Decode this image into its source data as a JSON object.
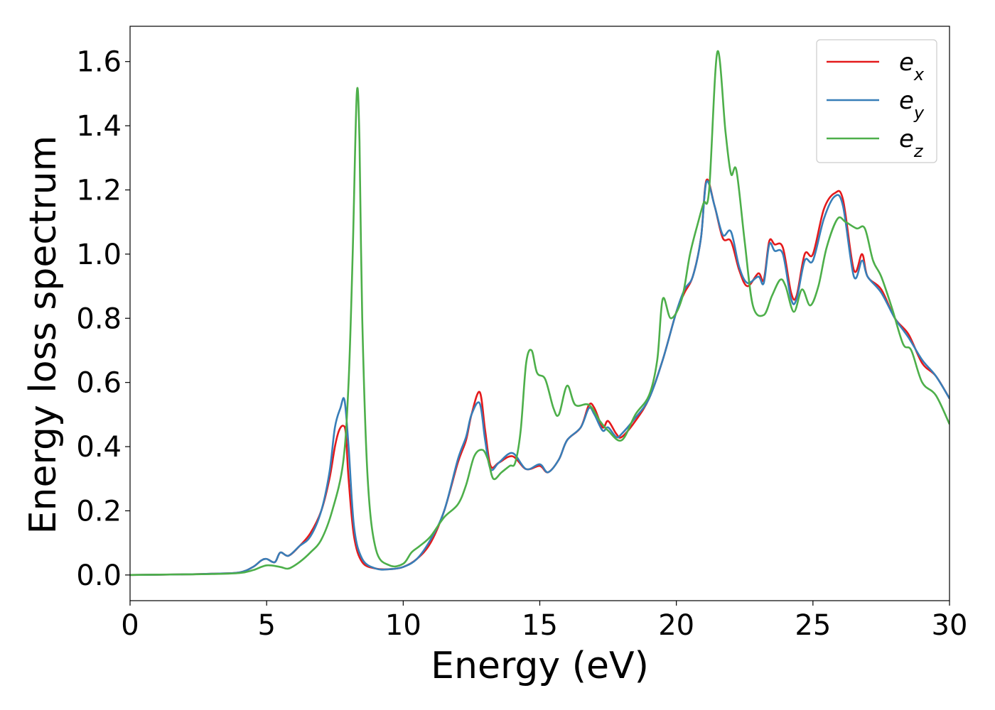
{
  "chart_data": {
    "type": "line",
    "xlabel": "Energy (eV)",
    "ylabel": "Energy loss spectrum",
    "xlim": [
      0,
      30
    ],
    "ylim": [
      -0.08,
      1.71
    ],
    "x_ticks": [
      0,
      5,
      10,
      15,
      20,
      25,
      30
    ],
    "y_ticks": [
      0.0,
      0.2,
      0.4,
      0.6,
      0.8,
      1.0,
      1.2,
      1.4,
      1.6
    ],
    "grid": false,
    "legend_position": "top-right",
    "series": [
      {
        "name": "e_x",
        "label_base": "e",
        "label_sub": "x",
        "color": "#e41a1c",
        "points": [
          [
            0,
            0
          ],
          [
            2,
            0.002
          ],
          [
            3,
            0.004
          ],
          [
            4,
            0.008
          ],
          [
            4.5,
            0.025
          ],
          [
            4.8,
            0.045
          ],
          [
            5.0,
            0.05
          ],
          [
            5.3,
            0.04
          ],
          [
            5.5,
            0.07
          ],
          [
            5.8,
            0.06
          ],
          [
            6.2,
            0.09
          ],
          [
            6.6,
            0.13
          ],
          [
            7.0,
            0.2
          ],
          [
            7.3,
            0.3
          ],
          [
            7.5,
            0.4
          ],
          [
            7.65,
            0.45
          ],
          [
            7.8,
            0.465
          ],
          [
            7.9,
            0.44
          ],
          [
            8.0,
            0.3
          ],
          [
            8.2,
            0.12
          ],
          [
            8.5,
            0.04
          ],
          [
            9.0,
            0.02
          ],
          [
            9.5,
            0.018
          ],
          [
            10.0,
            0.025
          ],
          [
            10.5,
            0.05
          ],
          [
            11.0,
            0.1
          ],
          [
            11.5,
            0.2
          ],
          [
            12.0,
            0.35
          ],
          [
            12.3,
            0.42
          ],
          [
            12.5,
            0.5
          ],
          [
            12.8,
            0.57
          ],
          [
            13.0,
            0.45
          ],
          [
            13.2,
            0.34
          ],
          [
            13.5,
            0.35
          ],
          [
            14.0,
            0.37
          ],
          [
            14.5,
            0.33
          ],
          [
            15.0,
            0.34
          ],
          [
            15.3,
            0.32
          ],
          [
            15.7,
            0.36
          ],
          [
            16.0,
            0.42
          ],
          [
            16.5,
            0.46
          ],
          [
            16.8,
            0.53
          ],
          [
            17.0,
            0.52
          ],
          [
            17.3,
            0.46
          ],
          [
            17.5,
            0.48
          ],
          [
            17.8,
            0.44
          ],
          [
            18.0,
            0.43
          ],
          [
            18.5,
            0.48
          ],
          [
            19.0,
            0.55
          ],
          [
            19.5,
            0.67
          ],
          [
            20.0,
            0.82
          ],
          [
            20.3,
            0.88
          ],
          [
            20.6,
            0.93
          ],
          [
            20.9,
            1.05
          ],
          [
            21.1,
            1.23
          ],
          [
            21.4,
            1.15
          ],
          [
            21.7,
            1.05
          ],
          [
            22.0,
            1.04
          ],
          [
            22.3,
            0.95
          ],
          [
            22.6,
            0.9
          ],
          [
            23.0,
            0.94
          ],
          [
            23.2,
            0.92
          ],
          [
            23.4,
            1.04
          ],
          [
            23.6,
            1.03
          ],
          [
            23.9,
            1.02
          ],
          [
            24.2,
            0.88
          ],
          [
            24.4,
            0.87
          ],
          [
            24.7,
            1.0
          ],
          [
            25.0,
            1.0
          ],
          [
            25.4,
            1.14
          ],
          [
            25.8,
            1.19
          ],
          [
            26.1,
            1.17
          ],
          [
            26.5,
            0.95
          ],
          [
            26.8,
            1.0
          ],
          [
            27.0,
            0.93
          ],
          [
            27.5,
            0.89
          ],
          [
            28.0,
            0.8
          ],
          [
            28.5,
            0.75
          ],
          [
            29.0,
            0.66
          ],
          [
            29.5,
            0.62
          ],
          [
            30.0,
            0.55
          ]
        ]
      },
      {
        "name": "e_y",
        "label_base": "e",
        "label_sub": "y",
        "color": "#377eb8",
        "points": [
          [
            0,
            0
          ],
          [
            2,
            0.002
          ],
          [
            3,
            0.004
          ],
          [
            4,
            0.008
          ],
          [
            4.5,
            0.025
          ],
          [
            4.8,
            0.045
          ],
          [
            5.0,
            0.05
          ],
          [
            5.3,
            0.04
          ],
          [
            5.5,
            0.07
          ],
          [
            5.8,
            0.06
          ],
          [
            6.2,
            0.09
          ],
          [
            6.6,
            0.12
          ],
          [
            7.0,
            0.2
          ],
          [
            7.3,
            0.32
          ],
          [
            7.5,
            0.46
          ],
          [
            7.7,
            0.52
          ],
          [
            7.85,
            0.545
          ],
          [
            8.0,
            0.4
          ],
          [
            8.2,
            0.15
          ],
          [
            8.5,
            0.05
          ],
          [
            9.0,
            0.02
          ],
          [
            9.5,
            0.018
          ],
          [
            10.0,
            0.025
          ],
          [
            10.5,
            0.05
          ],
          [
            11.0,
            0.11
          ],
          [
            11.5,
            0.2
          ],
          [
            12.0,
            0.36
          ],
          [
            12.3,
            0.43
          ],
          [
            12.5,
            0.5
          ],
          [
            12.8,
            0.535
          ],
          [
            13.0,
            0.42
          ],
          [
            13.2,
            0.33
          ],
          [
            13.5,
            0.35
          ],
          [
            14.0,
            0.38
          ],
          [
            14.5,
            0.33
          ],
          [
            15.0,
            0.345
          ],
          [
            15.3,
            0.32
          ],
          [
            15.7,
            0.36
          ],
          [
            16.0,
            0.42
          ],
          [
            16.5,
            0.46
          ],
          [
            16.8,
            0.52
          ],
          [
            17.0,
            0.5
          ],
          [
            17.3,
            0.45
          ],
          [
            17.5,
            0.46
          ],
          [
            17.8,
            0.43
          ],
          [
            18.0,
            0.44
          ],
          [
            18.5,
            0.49
          ],
          [
            19.0,
            0.55
          ],
          [
            19.5,
            0.67
          ],
          [
            20.0,
            0.82
          ],
          [
            20.3,
            0.89
          ],
          [
            20.6,
            0.93
          ],
          [
            20.9,
            1.05
          ],
          [
            21.1,
            1.225
          ],
          [
            21.4,
            1.15
          ],
          [
            21.7,
            1.06
          ],
          [
            22.0,
            1.07
          ],
          [
            22.3,
            0.96
          ],
          [
            22.6,
            0.91
          ],
          [
            23.0,
            0.93
          ],
          [
            23.2,
            0.91
          ],
          [
            23.4,
            1.03
          ],
          [
            23.6,
            1.01
          ],
          [
            23.9,
            1.0
          ],
          [
            24.2,
            0.86
          ],
          [
            24.4,
            0.86
          ],
          [
            24.7,
            0.98
          ],
          [
            25.0,
            0.98
          ],
          [
            25.4,
            1.11
          ],
          [
            25.8,
            1.18
          ],
          [
            26.1,
            1.15
          ],
          [
            26.5,
            0.93
          ],
          [
            26.8,
            0.98
          ],
          [
            27.0,
            0.93
          ],
          [
            27.5,
            0.88
          ],
          [
            28.0,
            0.8
          ],
          [
            28.5,
            0.74
          ],
          [
            29.0,
            0.67
          ],
          [
            29.5,
            0.62
          ],
          [
            30.0,
            0.55
          ]
        ]
      },
      {
        "name": "e_z",
        "label_base": "e",
        "label_sub": "z",
        "color": "#4daf4a",
        "points": [
          [
            0,
            0
          ],
          [
            2,
            0.002
          ],
          [
            3,
            0.003
          ],
          [
            4,
            0.006
          ],
          [
            4.5,
            0.015
          ],
          [
            5.0,
            0.03
          ],
          [
            5.5,
            0.025
          ],
          [
            5.8,
            0.02
          ],
          [
            6.2,
            0.04
          ],
          [
            6.6,
            0.07
          ],
          [
            7.0,
            0.11
          ],
          [
            7.4,
            0.2
          ],
          [
            7.8,
            0.35
          ],
          [
            8.0,
            0.6
          ],
          [
            8.15,
            1.0
          ],
          [
            8.3,
            1.5
          ],
          [
            8.4,
            1.35
          ],
          [
            8.5,
            0.8
          ],
          [
            8.7,
            0.3
          ],
          [
            9.0,
            0.08
          ],
          [
            9.5,
            0.03
          ],
          [
            10.0,
            0.035
          ],
          [
            10.3,
            0.07
          ],
          [
            10.6,
            0.09
          ],
          [
            11.0,
            0.12
          ],
          [
            11.5,
            0.18
          ],
          [
            12.0,
            0.22
          ],
          [
            12.3,
            0.28
          ],
          [
            12.6,
            0.37
          ],
          [
            12.9,
            0.39
          ],
          [
            13.1,
            0.36
          ],
          [
            13.3,
            0.3
          ],
          [
            13.6,
            0.32
          ],
          [
            13.9,
            0.34
          ],
          [
            14.1,
            0.35
          ],
          [
            14.3,
            0.45
          ],
          [
            14.5,
            0.66
          ],
          [
            14.7,
            0.7
          ],
          [
            14.9,
            0.63
          ],
          [
            15.2,
            0.61
          ],
          [
            15.5,
            0.52
          ],
          [
            15.7,
            0.5
          ],
          [
            16.0,
            0.59
          ],
          [
            16.3,
            0.53
          ],
          [
            16.8,
            0.53
          ],
          [
            17.2,
            0.48
          ],
          [
            17.5,
            0.45
          ],
          [
            18.0,
            0.42
          ],
          [
            18.5,
            0.5
          ],
          [
            19.0,
            0.56
          ],
          [
            19.3,
            0.67
          ],
          [
            19.5,
            0.86
          ],
          [
            19.8,
            0.8
          ],
          [
            20.2,
            0.86
          ],
          [
            20.5,
            1.0
          ],
          [
            20.8,
            1.1
          ],
          [
            21.0,
            1.16
          ],
          [
            21.2,
            1.2
          ],
          [
            21.5,
            1.63
          ],
          [
            21.8,
            1.38
          ],
          [
            22.0,
            1.25
          ],
          [
            22.2,
            1.26
          ],
          [
            22.5,
            1.04
          ],
          [
            22.8,
            0.84
          ],
          [
            23.2,
            0.81
          ],
          [
            23.5,
            0.87
          ],
          [
            23.8,
            0.92
          ],
          [
            24.0,
            0.9
          ],
          [
            24.3,
            0.82
          ],
          [
            24.6,
            0.89
          ],
          [
            24.9,
            0.84
          ],
          [
            25.2,
            0.9
          ],
          [
            25.5,
            1.02
          ],
          [
            25.9,
            1.11
          ],
          [
            26.2,
            1.1
          ],
          [
            26.6,
            1.08
          ],
          [
            26.9,
            1.08
          ],
          [
            27.2,
            0.98
          ],
          [
            27.5,
            0.93
          ],
          [
            27.9,
            0.83
          ],
          [
            28.3,
            0.72
          ],
          [
            28.6,
            0.7
          ],
          [
            29.0,
            0.6
          ],
          [
            29.5,
            0.56
          ],
          [
            30.0,
            0.47
          ]
        ]
      }
    ]
  }
}
